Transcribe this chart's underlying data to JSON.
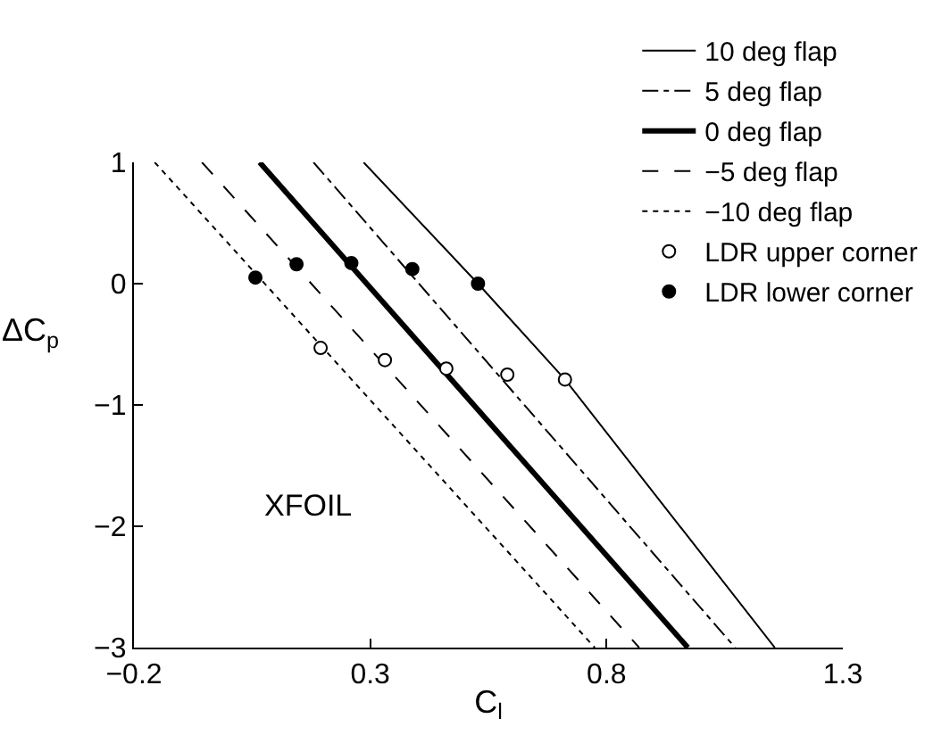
{
  "chart_data": {
    "type": "line",
    "xlabel": "C$_{l}$",
    "ylabel": "ΔC$_{p}$",
    "xlim": [
      -0.2,
      1.3
    ],
    "xticks": [
      -0.2,
      0.3,
      0.8,
      1.3
    ],
    "ylim": [
      -3,
      1
    ],
    "yticks": [
      -3,
      -2,
      -1,
      0,
      1
    ],
    "legend": "top right",
    "series": [
      {
        "name": "10 deg flap",
        "line_style": "solid",
        "color": "#000000",
        "x": [
          0.286,
          0.528,
          0.712,
          1.156
        ],
        "values": [
          1,
          0,
          -0.79,
          -3
        ]
      },
      {
        "name": "5 deg flap",
        "line_style": "dashdot",
        "color": "#000000",
        "x": [
          0.18,
          1.072
        ],
        "values": [
          1,
          -3
        ]
      },
      {
        "name": "0 deg flap",
        "line_style": "solid",
        "color": "#000000",
        "x": [
          0.066,
          0.972
        ],
        "values": [
          1,
          -3
        ]
      },
      {
        "name": "−5 deg flap",
        "line_style": "dashed",
        "color": "#000000",
        "x": [
          -0.056,
          0.869
        ],
        "values": [
          1,
          -3
        ]
      },
      {
        "name": "−10 deg flap",
        "line_style": "dotted",
        "color": "#000000",
        "x": [
          -0.156,
          0.775
        ],
        "values": [
          1,
          -3
        ]
      },
      {
        "name": "LDR upper corner",
        "type": "scatter",
        "marker": "circle",
        "color": "#ffffff",
        "x": [
          0.712,
          0.59,
          0.461,
          0.331,
          0.195
        ],
        "values": [
          -0.79,
          -0.75,
          -0.7,
          -0.63,
          -0.53
        ]
      },
      {
        "name": "LDR lower corner",
        "type": "scatter",
        "marker": "circle",
        "color": "#000000",
        "x": [
          0.528,
          0.389,
          0.26,
          0.144,
          0.057
        ],
        "values": [
          0,
          0.12,
          0.17,
          0.16,
          0.05
        ]
      }
    ],
    "annotations": [
      "XFOIL"
    ]
  }
}
